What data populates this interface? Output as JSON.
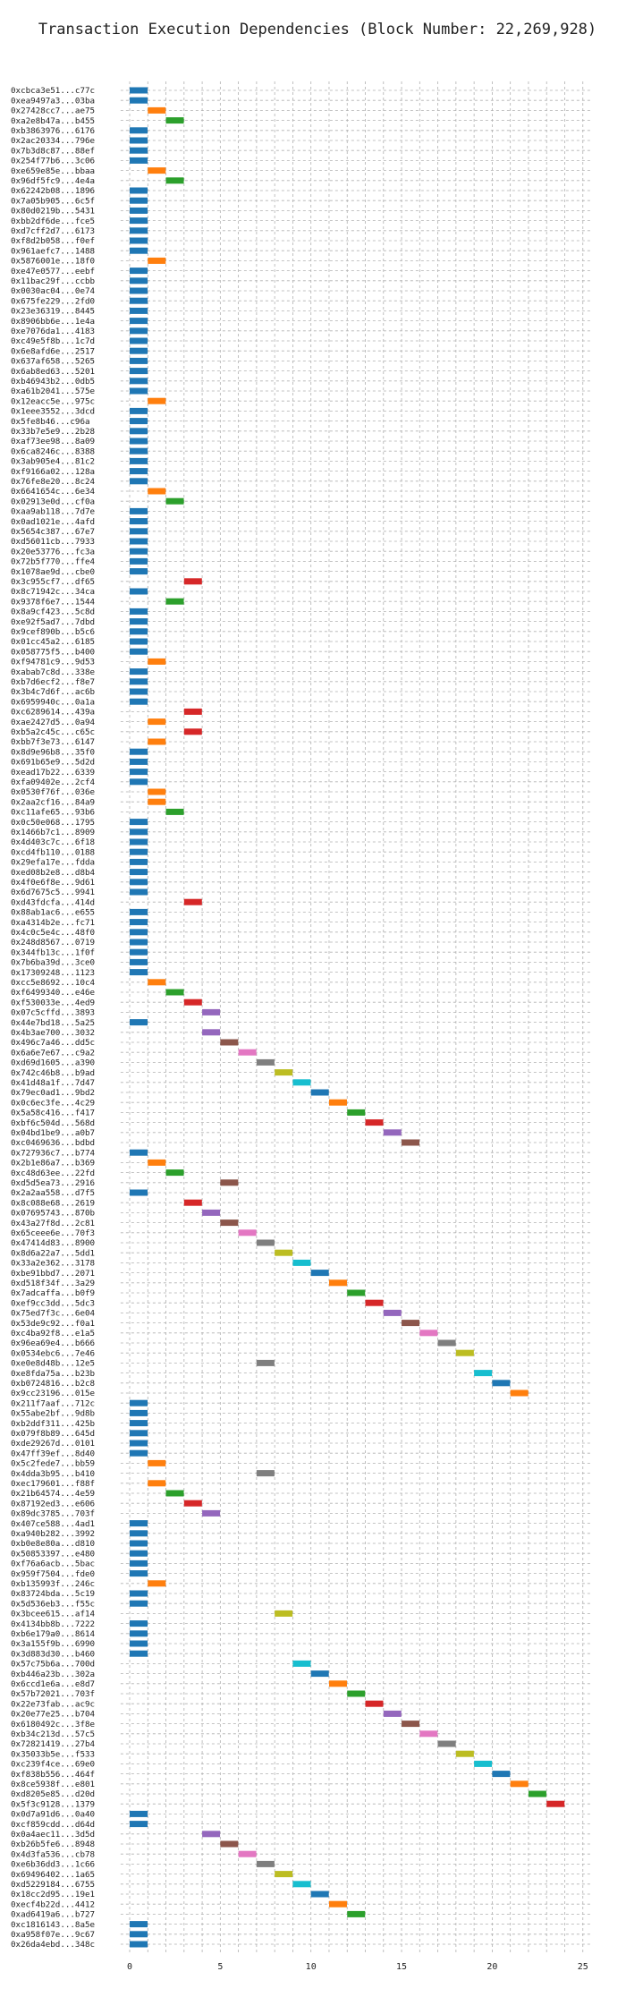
{
  "chart_data": {
    "type": "bar",
    "orientation": "horizontal",
    "title": "Transaction Execution Dependencies (Block Number: 22,269,928)",
    "xlabel": "",
    "ylabel": "",
    "xlim": [
      -0.5,
      25.5
    ],
    "xticks": [
      0,
      5,
      10,
      15,
      20,
      25
    ],
    "grid": true,
    "colors": [
      "#1f77b4",
      "#ff7f0e",
      "#2ca02c",
      "#d62728",
      "#9467bd",
      "#8c564b",
      "#e377c2",
      "#7f7f7f",
      "#bcbd22",
      "#17becf"
    ],
    "rows": [
      {
        "label": "0xcbca3e51...c77c",
        "start": 0
      },
      {
        "label": "0xea9497a3...03ba",
        "start": 0
      },
      {
        "label": "0x27428cc7...ae75",
        "start": 1
      },
      {
        "label": "0xa2e8b47a...b455",
        "start": 2
      },
      {
        "label": "0xb3863976...6176",
        "start": 0
      },
      {
        "label": "0x2ac20334...796e",
        "start": 0
      },
      {
        "label": "0x7b3d8c87...88ef",
        "start": 0
      },
      {
        "label": "0x254f77b6...3c06",
        "start": 0
      },
      {
        "label": "0xe659e85e...bbaa",
        "start": 1
      },
      {
        "label": "0x96df5fc9...4e4a",
        "start": 2
      },
      {
        "label": "0x62242b08...1896",
        "start": 0
      },
      {
        "label": "0x7a05b905...6c5f",
        "start": 0
      },
      {
        "label": "0x80d0219b...5431",
        "start": 0
      },
      {
        "label": "0xbb2df6de...fce5",
        "start": 0
      },
      {
        "label": "0xd7cff2d7...6173",
        "start": 0
      },
      {
        "label": "0xf8d2b058...f0ef",
        "start": 0
      },
      {
        "label": "0x961aefc7...1488",
        "start": 0
      },
      {
        "label": "0x5876001e...18f0",
        "start": 1
      },
      {
        "label": "0xe47e0577...eebf",
        "start": 0
      },
      {
        "label": "0x11bac29f...ccbb",
        "start": 0
      },
      {
        "label": "0x0030ac04...0e74",
        "start": 0
      },
      {
        "label": "0x675fe229...2fd0",
        "start": 0
      },
      {
        "label": "0x23e36319...8445",
        "start": 0
      },
      {
        "label": "0x8906bb6e...1e4a",
        "start": 0
      },
      {
        "label": "0xe7076da1...4183",
        "start": 0
      },
      {
        "label": "0xc49e5f8b...1c7d",
        "start": 0
      },
      {
        "label": "0x6e8afd6e...2517",
        "start": 0
      },
      {
        "label": "0x637af658...5265",
        "start": 0
      },
      {
        "label": "0x6ab8ed63...5201",
        "start": 0
      },
      {
        "label": "0xb46943b2...0db5",
        "start": 0
      },
      {
        "label": "0xa61b2041...575e",
        "start": 0
      },
      {
        "label": "0x12eacc5e...975c",
        "start": 1
      },
      {
        "label": "0x1eee3552...3dcd",
        "start": 0
      },
      {
        "label": "0x5fe8b46...c96a",
        "start": 0
      },
      {
        "label": "0x33b7e5e9...2b28",
        "start": 0
      },
      {
        "label": "0xaf73ee98...8a09",
        "start": 0
      },
      {
        "label": "0x6ca8246c...8388",
        "start": 0
      },
      {
        "label": "0x3ab905e4...81c2",
        "start": 0
      },
      {
        "label": "0xf9166a02...128a",
        "start": 0
      },
      {
        "label": "0x76fe8e20...8c24",
        "start": 0
      },
      {
        "label": "0x6641654c...6e34",
        "start": 1
      },
      {
        "label": "0x02913e0d...cf0a",
        "start": 2
      },
      {
        "label": "0xaa9ab118...7d7e",
        "start": 0
      },
      {
        "label": "0x0ad1021e...4afd",
        "start": 0
      },
      {
        "label": "0x5654c387...67e7",
        "start": 0
      },
      {
        "label": "0xd56011cb...7933",
        "start": 0
      },
      {
        "label": "0x20e53776...fc3a",
        "start": 0
      },
      {
        "label": "0x72b5f770...ffe4",
        "start": 0
      },
      {
        "label": "0x1078ae9d...cbe0",
        "start": 0
      },
      {
        "label": "0x3c955cf7...df65",
        "start": 3
      },
      {
        "label": "0x8c71942c...34ca",
        "start": 0
      },
      {
        "label": "0x9378f6e7...1544",
        "start": 2
      },
      {
        "label": "0x8a9cf423...5c8d",
        "start": 0
      },
      {
        "label": "0xe92f5ad7...7dbd",
        "start": 0
      },
      {
        "label": "0x9cef890b...b5c6",
        "start": 0
      },
      {
        "label": "0x01cc45a2...6185",
        "start": 0
      },
      {
        "label": "0x058775f5...b400",
        "start": 0
      },
      {
        "label": "0xf94781c9...9d53",
        "start": 1
      },
      {
        "label": "0xabab7c8d...338e",
        "start": 0
      },
      {
        "label": "0xb7d6ecf2...f8e7",
        "start": 0
      },
      {
        "label": "0x3b4c7d6f...ac6b",
        "start": 0
      },
      {
        "label": "0x6959940c...0a1a",
        "start": 0
      },
      {
        "label": "0xc6289614...439a",
        "start": 3
      },
      {
        "label": "0xae2427d5...0a94",
        "start": 1
      },
      {
        "label": "0xb5a2c45c...c65c",
        "start": 3
      },
      {
        "label": "0xbb7f3e73...6147",
        "start": 1
      },
      {
        "label": "0x8d9e96b8...35f0",
        "start": 0
      },
      {
        "label": "0x691b65e9...5d2d",
        "start": 0
      },
      {
        "label": "0xead17b22...6339",
        "start": 0
      },
      {
        "label": "0xfa09402e...2cf4",
        "start": 0
      },
      {
        "label": "0x0530f76f...036e",
        "start": 1
      },
      {
        "label": "0x2aa2cf16...84a9",
        "start": 1
      },
      {
        "label": "0xc11afe65...93b6",
        "start": 2
      },
      {
        "label": "0x0c50e068...1795",
        "start": 0
      },
      {
        "label": "0x1466b7c1...8909",
        "start": 0
      },
      {
        "label": "0x4d403c7c...6f18",
        "start": 0
      },
      {
        "label": "0xcd4fb110...0188",
        "start": 0
      },
      {
        "label": "0x29efa17e...fdda",
        "start": 0
      },
      {
        "label": "0xed08b2e8...d8b4",
        "start": 0
      },
      {
        "label": "0x4f0e6f8e...9d61",
        "start": 0
      },
      {
        "label": "0x6d7675c5...9941",
        "start": 0
      },
      {
        "label": "0xd43fdcfa...414d",
        "start": 3
      },
      {
        "label": "0x88ab1ac6...e655",
        "start": 0
      },
      {
        "label": "0xa4314b2e...fc71",
        "start": 0
      },
      {
        "label": "0x4c0c5e4c...48f0",
        "start": 0
      },
      {
        "label": "0x248d8567...0719",
        "start": 0
      },
      {
        "label": "0x344fb13c...1f0f",
        "start": 0
      },
      {
        "label": "0x7b6ba39d...3ce0",
        "start": 0
      },
      {
        "label": "0x17309248...1123",
        "start": 0
      },
      {
        "label": "0xcc5e8692...10c4",
        "start": 1
      },
      {
        "label": "0xf6499340...e46e",
        "start": 2
      },
      {
        "label": "0xf530033e...4ed9",
        "start": 3
      },
      {
        "label": "0x07c5cffd...3893",
        "start": 4
      },
      {
        "label": "0x44e7bd18...5a25",
        "start": 0
      },
      {
        "label": "0x4b3ae700...3032",
        "start": 4
      },
      {
        "label": "0x496c7a46...dd5c",
        "start": 5
      },
      {
        "label": "0x6a6e7e67...c9a2",
        "start": 6
      },
      {
        "label": "0xd69d1605...a390",
        "start": 7
      },
      {
        "label": "0x742c46b8...b9ad",
        "start": 8
      },
      {
        "label": "0x41d48a1f...7d47",
        "start": 9
      },
      {
        "label": "0x79ec0ad1...9bd2",
        "start": 10
      },
      {
        "label": "0x0c6ec3fe...4c29",
        "start": 11
      },
      {
        "label": "0x5a58c416...f417",
        "start": 12
      },
      {
        "label": "0xbf6c504d...568d",
        "start": 13
      },
      {
        "label": "0x04bd1be9...a0b7",
        "start": 14
      },
      {
        "label": "0xc0469636...bdbd",
        "start": 15
      },
      {
        "label": "0x727936c7...b774",
        "start": 0
      },
      {
        "label": "0x2b1e86a7...b369",
        "start": 1
      },
      {
        "label": "0xc48d63ee...22fd",
        "start": 2
      },
      {
        "label": "0xd5d5ea73...2916",
        "start": 5
      },
      {
        "label": "0x2a2aa558...d7f5",
        "start": 0
      },
      {
        "label": "0x8c088e68...2619",
        "start": 3
      },
      {
        "label": "0x07695743...870b",
        "start": 4
      },
      {
        "label": "0x43a27f8d...2c81",
        "start": 5
      },
      {
        "label": "0x65ceee6e...70f3",
        "start": 6
      },
      {
        "label": "0x47414d83...8900",
        "start": 7
      },
      {
        "label": "0x8d6a22a7...5dd1",
        "start": 8
      },
      {
        "label": "0x33a2e362...3178",
        "start": 9
      },
      {
        "label": "0xbe91bbd7...2071",
        "start": 10
      },
      {
        "label": "0xd518f34f...3a29",
        "start": 11
      },
      {
        "label": "0x7adcaffa...b0f9",
        "start": 12
      },
      {
        "label": "0xef9cc3dd...5dc3",
        "start": 13
      },
      {
        "label": "0x75ed7f3c...6e04",
        "start": 14
      },
      {
        "label": "0x53de9c92...f0a1",
        "start": 15
      },
      {
        "label": "0xc4ba92f8...e1a5",
        "start": 16
      },
      {
        "label": "0x96ea69e4...b666",
        "start": 17
      },
      {
        "label": "0x0534ebc6...7e46",
        "start": 18
      },
      {
        "label": "0xe0e8d48b...12e5",
        "start": 7
      },
      {
        "label": "0xe8fda75a...b23b",
        "start": 19
      },
      {
        "label": "0xb0724816...b2c8",
        "start": 20
      },
      {
        "label": "0x9cc23196...015e",
        "start": 21
      },
      {
        "label": "0x211f7aaf...712c",
        "start": 0
      },
      {
        "label": "0x55abe2bf...9d8b",
        "start": 0
      },
      {
        "label": "0xb2ddf311...425b",
        "start": 0
      },
      {
        "label": "0x079f8b89...645d",
        "start": 0
      },
      {
        "label": "0xde29267d...0101",
        "start": 0
      },
      {
        "label": "0x47ff39ef...8d40",
        "start": 0
      },
      {
        "label": "0x5c2fede7...bb59",
        "start": 1
      },
      {
        "label": "0x4dda3b95...b410",
        "start": 7
      },
      {
        "label": "0xec179601...f88f",
        "start": 1
      },
      {
        "label": "0x21b64574...4e59",
        "start": 2
      },
      {
        "label": "0x87192ed3...e606",
        "start": 3
      },
      {
        "label": "0x89dc3785...703f",
        "start": 4
      },
      {
        "label": "0x407ce588...4ad1",
        "start": 0
      },
      {
        "label": "0xa940b282...3992",
        "start": 0
      },
      {
        "label": "0xb0e8e80a...d810",
        "start": 0
      },
      {
        "label": "0x50853397...e480",
        "start": 0
      },
      {
        "label": "0xf76a6acb...5bac",
        "start": 0
      },
      {
        "label": "0x959f7504...fde0",
        "start": 0
      },
      {
        "label": "0xb135993f...246c",
        "start": 1
      },
      {
        "label": "0x83724bda...5c19",
        "start": 0
      },
      {
        "label": "0x5d536eb3...f55c",
        "start": 0
      },
      {
        "label": "0x3bcee615...af14",
        "start": 8
      },
      {
        "label": "0x4134bb8b...7222",
        "start": 0
      },
      {
        "label": "0xb6e179a0...8614",
        "start": 0
      },
      {
        "label": "0x3a155f9b...6990",
        "start": 0
      },
      {
        "label": "0x3d883d30...b460",
        "start": 0
      },
      {
        "label": "0x57c75b6a...700d",
        "start": 9
      },
      {
        "label": "0xb446a23b...302a",
        "start": 10
      },
      {
        "label": "0x6ccd1e6a...e8d7",
        "start": 11
      },
      {
        "label": "0x57b72021...703f",
        "start": 12
      },
      {
        "label": "0x22e73fab...ac9c",
        "start": 13
      },
      {
        "label": "0x20e77e25...b704",
        "start": 14
      },
      {
        "label": "0x6180492c...3f8e",
        "start": 15
      },
      {
        "label": "0xb34c213d...57c5",
        "start": 16
      },
      {
        "label": "0x72821419...27b4",
        "start": 17
      },
      {
        "label": "0x35033b5e...f533",
        "start": 18
      },
      {
        "label": "0xc239f4ce...69e0",
        "start": 19
      },
      {
        "label": "0xf838b556...464f",
        "start": 20
      },
      {
        "label": "0x8ce5938f...e801",
        "start": 21
      },
      {
        "label": "0xd8205e85...d20d",
        "start": 22
      },
      {
        "label": "0x5f3c9128...1379",
        "start": 23
      },
      {
        "label": "0x0d7a91d6...0a40",
        "start": 0
      },
      {
        "label": "0xcf859cdd...d64d",
        "start": 0
      },
      {
        "label": "0x0a4aec11...3d5d",
        "start": 4
      },
      {
        "label": "0xb26b5fe6...8948",
        "start": 5
      },
      {
        "label": "0x4d3fa536...cb78",
        "start": 6
      },
      {
        "label": "0xe6b36dd3...1c66",
        "start": 7
      },
      {
        "label": "0x69496402...1a65",
        "start": 8
      },
      {
        "label": "0xd5229184...6755",
        "start": 9
      },
      {
        "label": "0x18cc2d95...19e1",
        "start": 10
      },
      {
        "label": "0xecf4b22d...4412",
        "start": 11
      },
      {
        "label": "0xad6419a6...b727",
        "start": 12
      },
      {
        "label": "0xc1816143...8a5e",
        "start": 0
      },
      {
        "label": "0xa958f07e...9c67",
        "start": 0
      },
      {
        "label": "0x26da4ebd...348c",
        "start": 0
      }
    ]
  }
}
